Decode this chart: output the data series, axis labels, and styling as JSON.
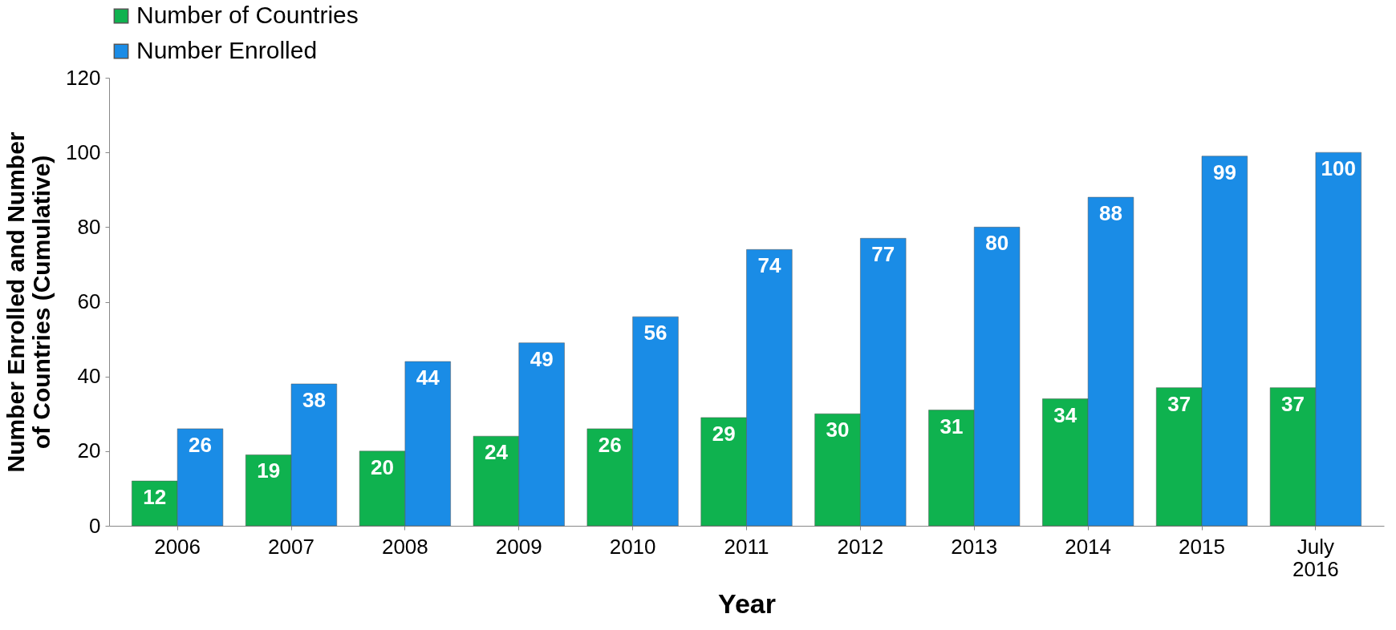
{
  "chart_data": {
    "type": "bar",
    "xlabel": "Year",
    "ylabel": "Number Enrolled and Number of Countries (Cumulative)",
    "categories": [
      "2006",
      "2007",
      "2008",
      "2009",
      "2010",
      "2011",
      "2012",
      "2013",
      "2014",
      "2015",
      "July 2016"
    ],
    "series": [
      {
        "name": "Number of Countries",
        "color": "#0fb24f",
        "values": [
          12,
          19,
          20,
          24,
          26,
          29,
          30,
          31,
          34,
          37,
          37
        ]
      },
      {
        "name": "Number Enrolled",
        "color": "#1a8ce6",
        "values": [
          26,
          38,
          44,
          49,
          56,
          74,
          77,
          80,
          88,
          99,
          100
        ]
      }
    ],
    "ylim": [
      0,
      120
    ],
    "yticks": [
      0,
      20,
      40,
      60,
      80,
      100,
      120
    ],
    "grid": false,
    "legend": "top",
    "data_labels": true
  }
}
